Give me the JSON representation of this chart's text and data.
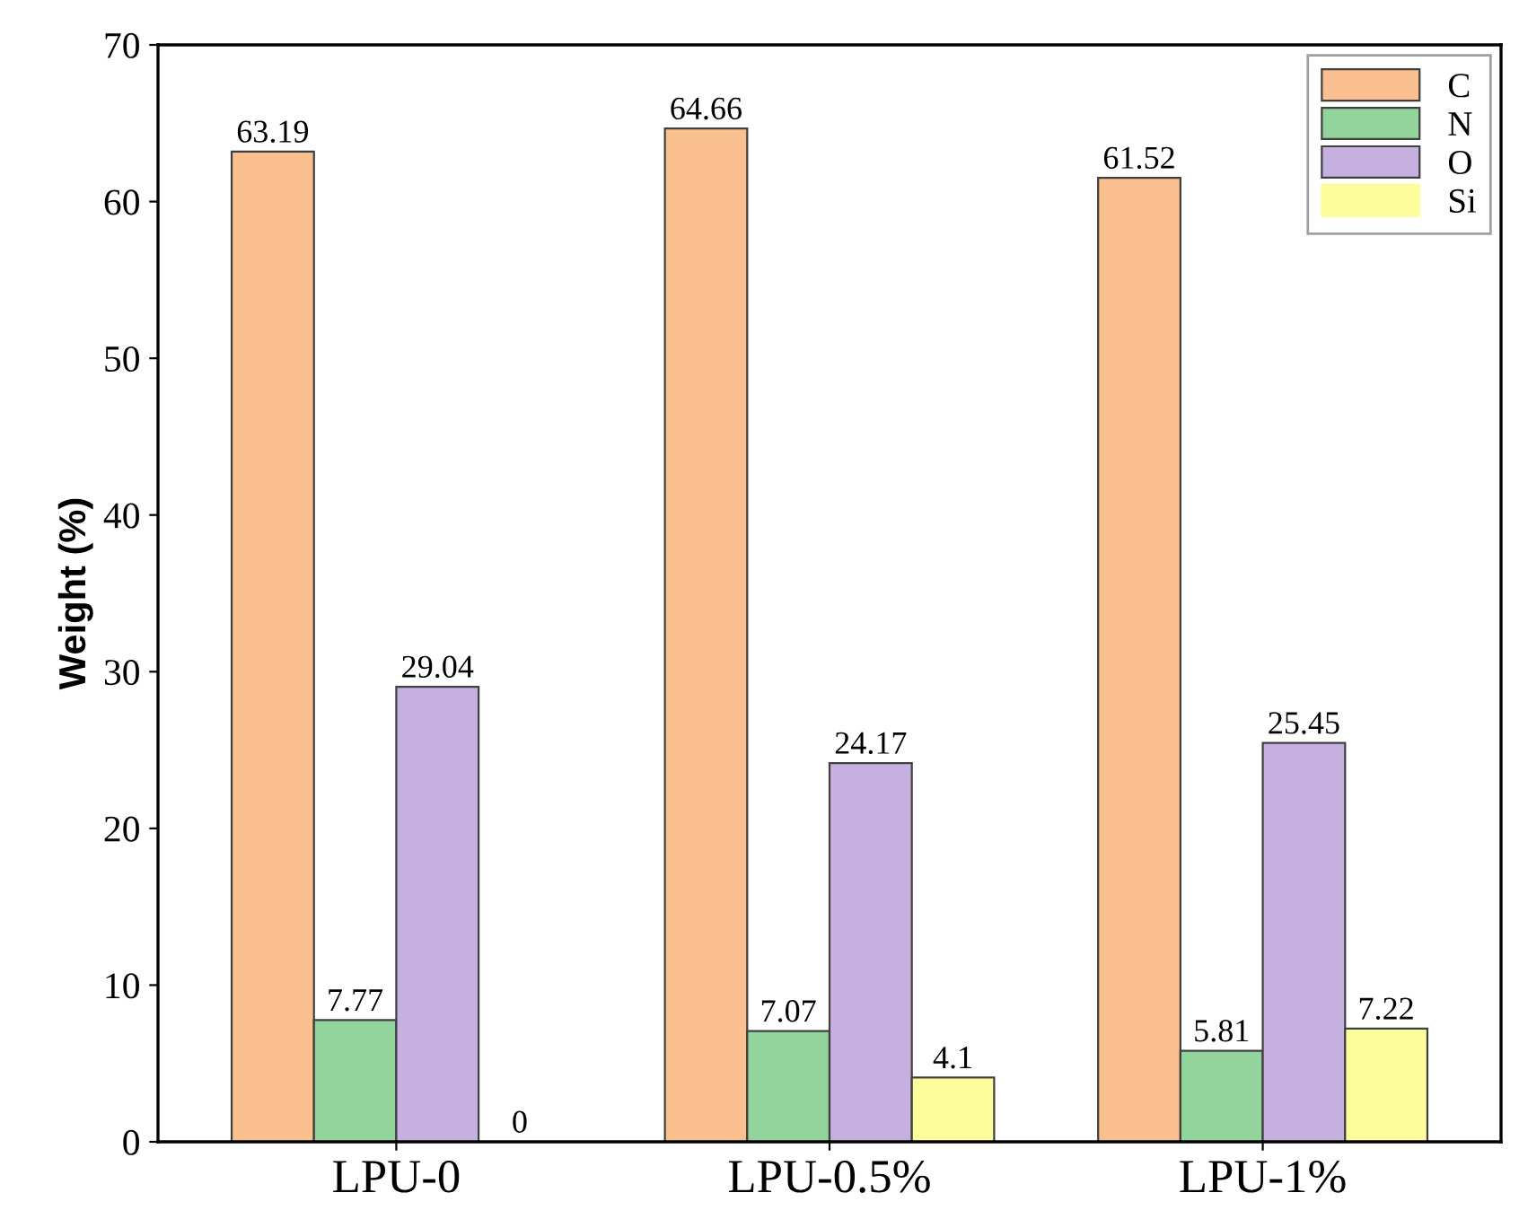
{
  "chart_data": {
    "type": "bar",
    "ylabel": "Weight (%)",
    "categories": [
      "LPU-0",
      "LPU-0.5%",
      "LPU-1%"
    ],
    "series": [
      {
        "name": "C",
        "color": "#fbc08f",
        "values": [
          63.19,
          64.66,
          61.52
        ]
      },
      {
        "name": "N",
        "color": "#93d39c",
        "values": [
          7.77,
          7.07,
          5.81
        ]
      },
      {
        "name": "O",
        "color": "#c6b0e0",
        "values": [
          29.04,
          24.17,
          25.45
        ]
      },
      {
        "name": "Si",
        "color": "#fdfd9c",
        "values": [
          0,
          4.1,
          7.22
        ]
      }
    ],
    "ylim": [
      0,
      70
    ],
    "yticks": [
      0,
      10,
      20,
      30,
      40,
      50,
      60,
      70
    ],
    "data_labels": true,
    "legend": "top right",
    "grid": false
  }
}
